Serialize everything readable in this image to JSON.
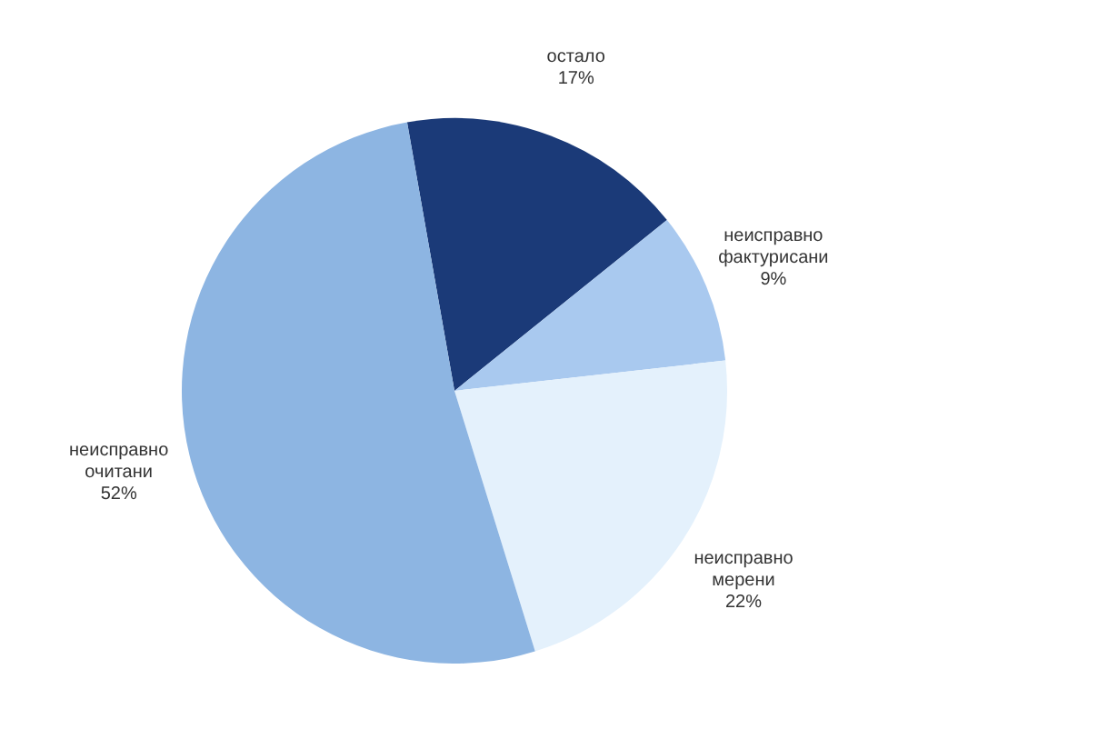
{
  "chart_data": {
    "type": "pie",
    "categories": [
      "остало",
      "неисправно фактурисани",
      "неисправно мерени",
      "неисправно очитани"
    ],
    "values": [
      17,
      9,
      22,
      52
    ],
    "colors": [
      "#1b3a78",
      "#a9c9ef",
      "#e4f1fc",
      "#8db5e2"
    ],
    "value_labels": [
      "17%",
      "9%",
      "22%",
      "52%"
    ],
    "legend": false
  }
}
